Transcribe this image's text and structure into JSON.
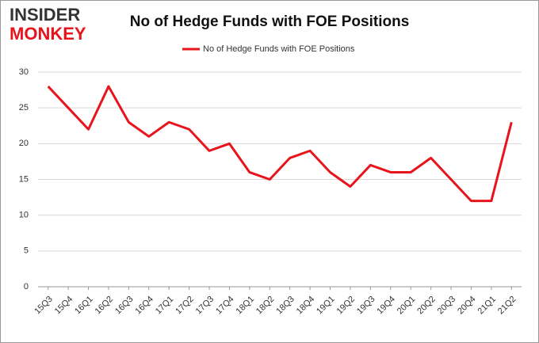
{
  "logo": {
    "line1": "INSIDER",
    "line2": "MONKEY"
  },
  "chart_data": {
    "type": "line",
    "title": "No of Hedge Funds with FOE Positions",
    "categories": [
      "15Q3",
      "15Q4",
      "16Q1",
      "16Q2",
      "16Q3",
      "16Q4",
      "17Q1",
      "17Q2",
      "17Q3",
      "17Q4",
      "18Q1",
      "18Q2",
      "18Q3",
      "18Q4",
      "19Q1",
      "19Q2",
      "19Q3",
      "19Q4",
      "20Q1",
      "20Q2",
      "20Q3",
      "20Q4",
      "21Q1",
      "21Q2"
    ],
    "series": [
      {
        "name": "No of Hedge Funds with FOE Positions",
        "color": "#e8141c",
        "values": [
          28,
          25,
          22,
          28,
          23,
          21,
          23,
          22,
          19,
          20,
          16,
          15,
          18,
          19,
          16,
          14,
          17,
          16,
          16,
          18,
          15,
          12,
          12,
          23
        ]
      }
    ],
    "ylim": [
      0,
      30
    ],
    "yticks": [
      0,
      5,
      10,
      15,
      20,
      25,
      30
    ],
    "grid": true,
    "legend": "top"
  }
}
